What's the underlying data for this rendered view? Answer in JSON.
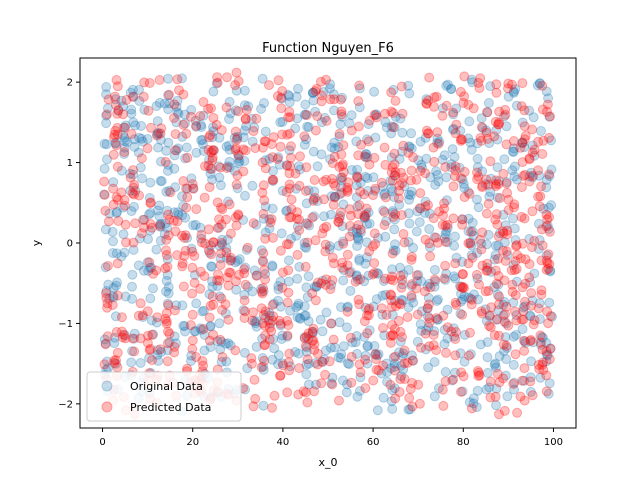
{
  "chart_data": {
    "type": "scatter",
    "title": "Function Nguyen_F6",
    "xlabel": "x_0",
    "ylabel": "y",
    "xlim": [
      -5,
      105
    ],
    "ylim": [
      -2.3,
      2.3
    ],
    "xticks": [
      0,
      20,
      40,
      60,
      80,
      100
    ],
    "yticks": [
      -2,
      -1,
      0,
      1,
      2
    ],
    "legend_position": "lower-left",
    "grid": false,
    "series": [
      {
        "name": "Original Data",
        "color": "#1f77b4",
        "alpha": 0.25,
        "x_range": [
          0,
          100
        ],
        "approx_points": 1000,
        "y_min": -2.1,
        "y_max": 2.05,
        "pattern": "vertical-streaks"
      },
      {
        "name": "Predicted Data",
        "color": "#ff0000",
        "alpha": 0.25,
        "x_range": [
          0,
          100
        ],
        "approx_points": 1000,
        "y_min": -2.15,
        "y_max": 2.12,
        "pattern": "vertical-streaks"
      }
    ]
  }
}
